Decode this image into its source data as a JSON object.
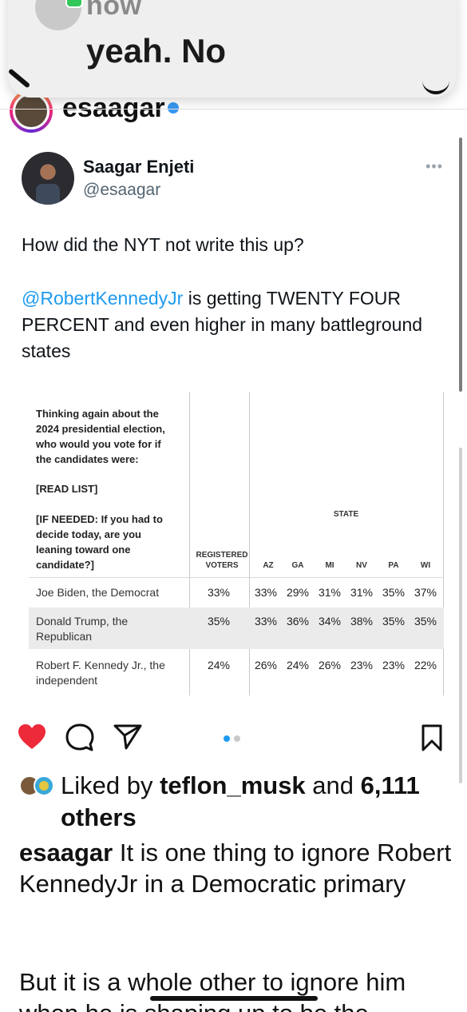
{
  "notification": {
    "time": "now",
    "message": "yeah. No"
  },
  "post_header": {
    "username": "esaagar"
  },
  "tweet": {
    "name": "Saagar Enjeti",
    "handle": "@esaagar",
    "more": "•••",
    "line1": "How did the NYT not write this up?",
    "mention": "@RobertKennedyJr",
    "line2_rest": " is getting TWENTY FOUR PERCENT and even higher in many battleground states"
  },
  "poll": {
    "question_lines": [
      "Thinking again about the",
      "2024 presidential election,",
      "who would you vote for if",
      "the candidates were:"
    ],
    "read_list": "[READ LIST]",
    "if_needed_lines": [
      "[IF NEEDED: If you had to",
      "decide today, are you",
      "leaning toward one",
      "candidate?]"
    ],
    "registered_voters_lines": [
      "REGISTERED",
      "VOTERS"
    ],
    "state_header": "STATE",
    "states": [
      "AZ",
      "GA",
      "MI",
      "NV",
      "PA",
      "WI"
    ],
    "rows": [
      {
        "label_lines": [
          "Joe Biden, the Democrat"
        ],
        "rv": "33%",
        "values": [
          "33%",
          "29%",
          "31%",
          "31%",
          "35%",
          "37%"
        ]
      },
      {
        "label_lines": [
          "Donald Trump, the",
          "Republican"
        ],
        "rv": "35%",
        "values": [
          "33%",
          "36%",
          "34%",
          "38%",
          "35%",
          "35%"
        ]
      },
      {
        "label_lines": [
          "Robert F. Kennedy Jr., the",
          "independent"
        ],
        "rv": "24%",
        "values": [
          "26%",
          "24%",
          "26%",
          "23%",
          "23%",
          "22%"
        ]
      }
    ]
  },
  "actions": {
    "like_icon": "heart-icon",
    "comment_icon": "comment-icon",
    "share_icon": "send-icon",
    "save_icon": "bookmark-icon",
    "liked_color": "#ed2a3a",
    "carousel_active_color": "#1d9bf0"
  },
  "likes": {
    "prefix": "Liked by ",
    "user": "teflon_musk",
    "middle": " and ",
    "others": "6,111 others"
  },
  "caption": {
    "username": "esaagar",
    "text1": " It is one thing to ignore Robert KennedyJr in a Democratic primary",
    "text2": "But it is a whole other to ignore him",
    "text3": "when he is shaping up to be the"
  }
}
